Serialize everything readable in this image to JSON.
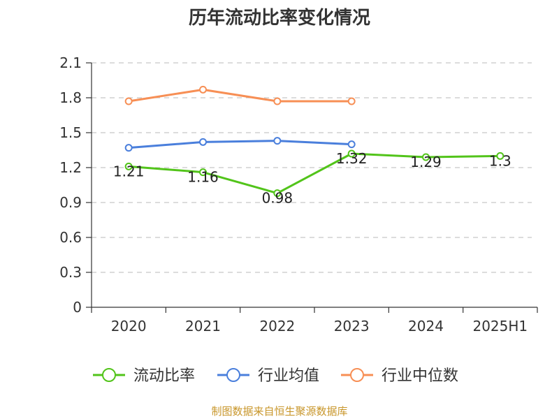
{
  "chart_data": {
    "type": "line",
    "title": "历年流动比率变化情况",
    "categories": [
      "2020",
      "2021",
      "2022",
      "2023",
      "2024",
      "2025H1"
    ],
    "ylim": [
      0,
      2.1
    ],
    "yticks": [
      "0",
      "0.3",
      "0.6",
      "0.9",
      "1.2",
      "1.5",
      "1.8",
      "2.1"
    ],
    "grid": true,
    "legend_position": "bottom",
    "series": [
      {
        "name": "流动比率",
        "color": "#52c41a",
        "values": [
          1.21,
          1.16,
          0.98,
          1.32,
          1.29,
          1.3
        ],
        "labels": [
          "1.21",
          "1.16",
          "0.98",
          "1.32",
          "1.29",
          "1.3"
        ]
      },
      {
        "name": "行业均值",
        "color": "#4a7fdc",
        "values": [
          1.37,
          1.42,
          1.43,
          1.4,
          null,
          null
        ]
      },
      {
        "name": "行业中位数",
        "color": "#f78f55",
        "values": [
          1.77,
          1.87,
          1.77,
          1.77,
          null,
          null
        ]
      }
    ],
    "source": "制图数据来自恒生聚源数据库",
    "source_color": "#c8962a"
  }
}
